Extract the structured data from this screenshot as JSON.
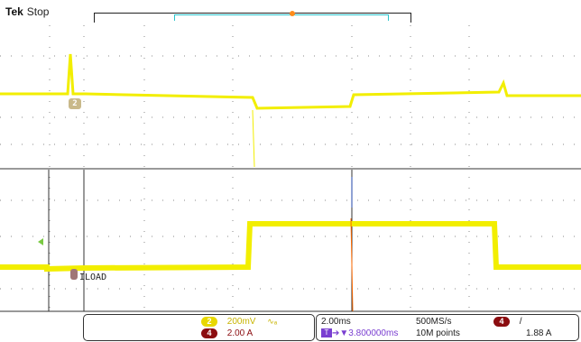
{
  "header": {
    "brand": "Tek",
    "acq_state": "Stop"
  },
  "channels": {
    "ch2": {
      "number": "2",
      "color": "#e8d800",
      "scale": "200mV",
      "coupling_icon": "ac-bandwidth-icon"
    },
    "ch4": {
      "number": "4",
      "color": "#8b0d10",
      "label": "ILOAD",
      "scale": "2.00 A"
    }
  },
  "waveform_labels": {
    "ch2_marker": "2",
    "ch4_marker": "4",
    "ch4_name": "ILOAD"
  },
  "timebase": {
    "scale": "2.00ms",
    "sample_rate": "500MS/s",
    "trigger_delay": "▼3.800000ms",
    "record_length": "10M points"
  },
  "trigger": {
    "source": "4",
    "slope": "/",
    "level": "1.88 A"
  },
  "colors": {
    "trace": "#f2ee00",
    "grid": "#8a8a8a",
    "zoom_window": "#2ac4cc",
    "trigger_marker": "#ff8c1a",
    "ch4_badge": "#8b0d10",
    "ch2_badge": "#e8d800"
  }
}
